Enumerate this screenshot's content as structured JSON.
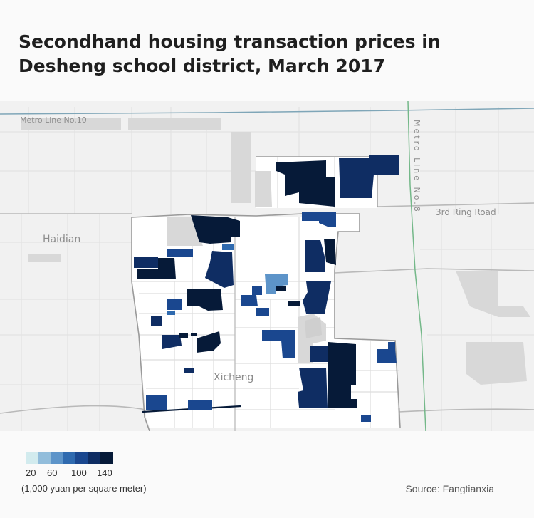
{
  "title": "Secondhand housing transaction prices in Desheng school district, March 2017",
  "map_labels": {
    "metro_10": "Metro Line No.10",
    "ring_road": "3rd Ring Road",
    "haidian": "Haidian",
    "xicheng": "Xicheng",
    "metro_8": "Metro Line No.8"
  },
  "legend": {
    "colors": [
      "#d2ebee",
      "#92bddb",
      "#5d94c9",
      "#2f6aaf",
      "#1a478f",
      "#0f2d63",
      "#061a38"
    ],
    "ticks": [
      "20",
      "60",
      "100",
      "140"
    ],
    "unit": "(1,000  yuan per square meter)"
  },
  "source": "Source: Fangtianxia",
  "colors": {
    "map_background": "#f1f1f1",
    "district_fill": "#ffffff",
    "district_boundary": "#9a9a9a",
    "metro_line_10": "#7fa6b8",
    "metro_line_8": "#74b889",
    "building_gray": "#d8d8d8"
  }
}
